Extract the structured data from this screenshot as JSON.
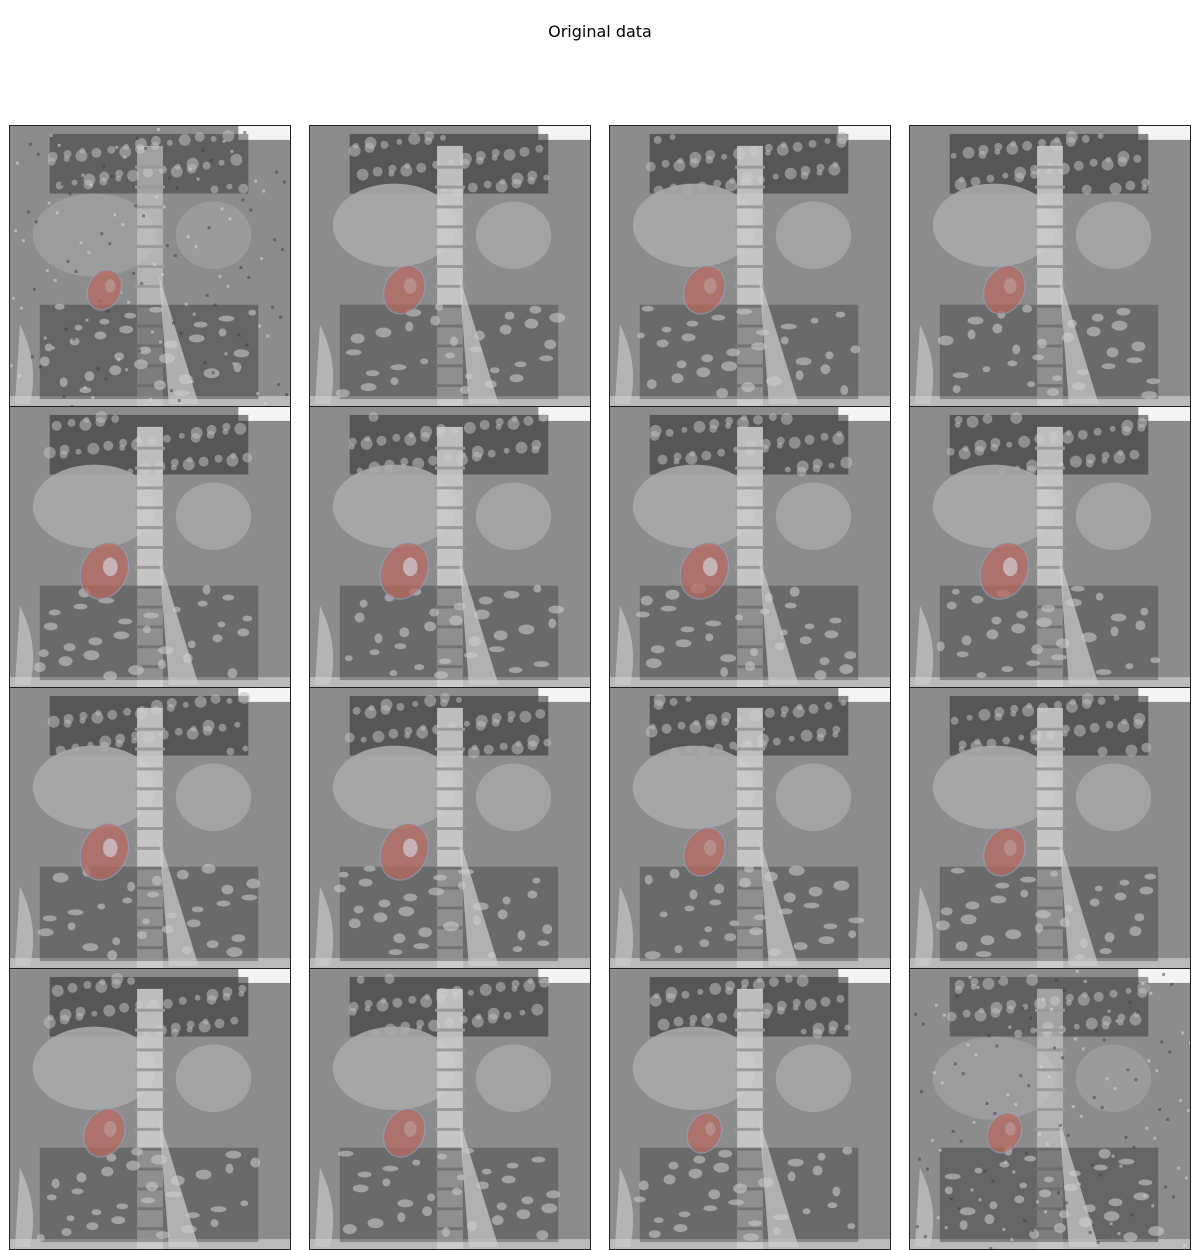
{
  "figure": {
    "title": "Original data"
  },
  "colors": {
    "background_gray": "#8c8c8c",
    "organ_gray": "#a9a9a9",
    "bright_gray": "#cfcfcf",
    "dark_texture": "#2a2a2a",
    "mask_overlay": "#b86a60",
    "mask_outline": "#8fa0c0"
  },
  "panels": [
    {
      "row": 1,
      "col": 1,
      "style": "noisy",
      "mask": "small"
    },
    {
      "row": 1,
      "col": 2,
      "style": "normal",
      "mask": "medium"
    },
    {
      "row": 1,
      "col": 3,
      "style": "normal",
      "mask": "medium"
    },
    {
      "row": 1,
      "col": 4,
      "style": "normal",
      "mask": "medium"
    },
    {
      "row": 2,
      "col": 1,
      "style": "normal",
      "mask": "large"
    },
    {
      "row": 2,
      "col": 2,
      "style": "normal",
      "mask": "large"
    },
    {
      "row": 2,
      "col": 3,
      "style": "normal",
      "mask": "large"
    },
    {
      "row": 2,
      "col": 4,
      "style": "normal",
      "mask": "large"
    },
    {
      "row": 3,
      "col": 1,
      "style": "normal",
      "mask": "large"
    },
    {
      "row": 3,
      "col": 2,
      "style": "normal",
      "mask": "large"
    },
    {
      "row": 3,
      "col": 3,
      "style": "normal",
      "mask": "medium"
    },
    {
      "row": 3,
      "col": 4,
      "style": "normal",
      "mask": "medium"
    },
    {
      "row": 4,
      "col": 1,
      "style": "normal",
      "mask": "medium"
    },
    {
      "row": 4,
      "col": 2,
      "style": "normal",
      "mask": "medium"
    },
    {
      "row": 4,
      "col": 3,
      "style": "normal",
      "mask": "small"
    },
    {
      "row": 4,
      "col": 4,
      "style": "noisy",
      "mask": "small"
    }
  ]
}
